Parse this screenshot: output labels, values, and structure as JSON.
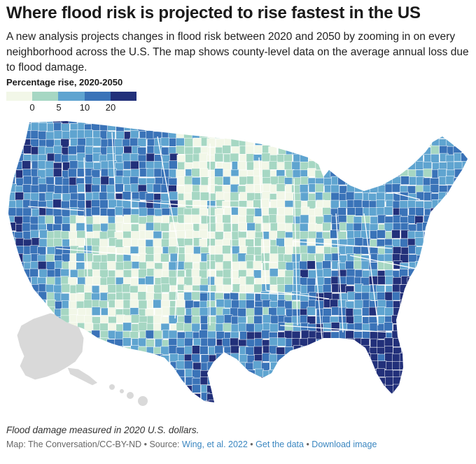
{
  "title": "Where flood risk is projected to rise fastest in the US",
  "subtitle": "A new analysis projects changes in flood risk between 2020 and 2050 by zooming in on every neighborhood across the U.S. The map shows county-level data on the average annual loss due to flood damage.",
  "legend": {
    "title": "Percentage rise, 2020-2050",
    "ticks": [
      "0",
      "5",
      "10",
      "20"
    ],
    "colors": [
      "#f2f7e8",
      "#a6d7c3",
      "#5fa4d0",
      "#3a73b8",
      "#22307a"
    ]
  },
  "map_colors": {
    "land_gray": "#d9d9d9",
    "state_border": "#ffffff"
  },
  "notes": "Flood damage measured in 2020 U.S. dollars.",
  "credit": {
    "prefix": "Map: The Conversation/CC-BY-ND • Source: ",
    "source_link": "Wing, et al. 2022",
    "sep1": " • ",
    "data_link": "Get the data",
    "sep2": " • ",
    "download_link": "Download image"
  }
}
